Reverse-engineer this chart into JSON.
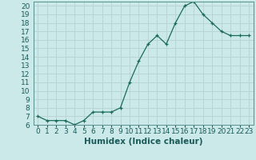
{
  "x": [
    0,
    1,
    2,
    3,
    4,
    5,
    6,
    7,
    8,
    9,
    10,
    11,
    12,
    13,
    14,
    15,
    16,
    17,
    18,
    19,
    20,
    21,
    22,
    23
  ],
  "y": [
    7,
    6.5,
    6.5,
    6.5,
    6,
    6.5,
    7.5,
    7.5,
    7.5,
    8,
    11,
    13.5,
    15.5,
    16.5,
    15.5,
    18,
    20,
    20.5,
    19,
    18,
    17,
    16.5,
    16.5,
    16.5
  ],
  "xlabel": "Humidex (Indice chaleur)",
  "ylim": [
    6,
    20.5
  ],
  "xlim": [
    -0.5,
    23.5
  ],
  "yticks": [
    6,
    7,
    8,
    9,
    10,
    11,
    12,
    13,
    14,
    15,
    16,
    17,
    18,
    19,
    20
  ],
  "xticks": [
    0,
    1,
    2,
    3,
    4,
    5,
    6,
    7,
    8,
    9,
    10,
    11,
    12,
    13,
    14,
    15,
    16,
    17,
    18,
    19,
    20,
    21,
    22,
    23
  ],
  "line_color": "#1a6b5a",
  "marker": "+",
  "bg_color": "#cce9e9",
  "grid_color": "#b8d4d4",
  "xlabel_fontsize": 7.5,
  "tick_fontsize": 6.5
}
